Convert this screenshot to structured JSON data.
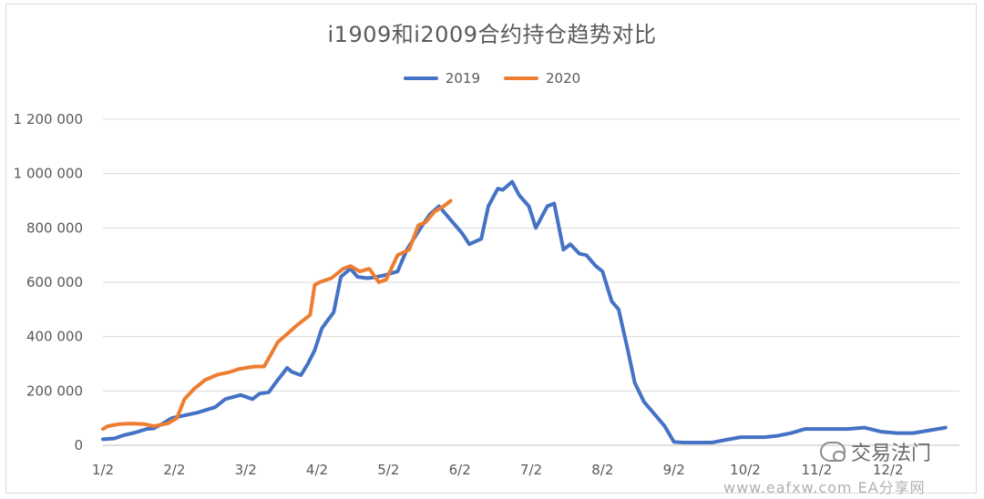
{
  "chart_data": {
    "type": "line",
    "title": "i1909和i2009合约持仓趋势对比",
    "xlabel": "",
    "ylabel": "",
    "x_ticks": [
      "1/2",
      "2/2",
      "3/2",
      "4/2",
      "5/2",
      "6/2",
      "7/2",
      "8/2",
      "9/2",
      "10/2",
      "11/2",
      "12/2"
    ],
    "y_ticks": [
      "0",
      "200 000",
      "400 000",
      "600 000",
      "800 000",
      "1 000 000",
      "1 200 000"
    ],
    "ylim": [
      0,
      1200000
    ],
    "grid": true,
    "legend_position": "top",
    "series": [
      {
        "name": "2019",
        "color": "#4472C4",
        "x": [
          "1/2",
          "1/7",
          "1/11",
          "1/16",
          "1/21",
          "1/24",
          "1/28",
          "2/1",
          "2/11",
          "2/18",
          "2/22",
          "2/28",
          "3/5",
          "3/8",
          "3/12",
          "3/15",
          "3/20",
          "3/22",
          "3/26",
          "3/29",
          "4/1",
          "4/4",
          "4/9",
          "4/12",
          "4/16",
          "4/19",
          "4/23",
          "4/26",
          "4/30",
          "5/6",
          "5/10",
          "5/16",
          "5/20",
          "5/24",
          "5/29",
          "6/3",
          "6/6",
          "6/11",
          "6/14",
          "6/18",
          "6/20",
          "6/24",
          "6/27",
          "7/1",
          "7/4",
          "7/9",
          "7/12",
          "7/16",
          "7/19",
          "7/23",
          "7/26",
          "7/30",
          "8/2",
          "8/6",
          "8/9",
          "8/13",
          "8/16",
          "8/20",
          "8/23",
          "8/29",
          "9/2",
          "9/6",
          "9/12",
          "9/18",
          "9/24",
          "9/30",
          "10/10",
          "10/16",
          "10/22",
          "10/28",
          "11/1",
          "11/8",
          "11/15",
          "11/22",
          "11/29",
          "12/6",
          "12/13",
          "12/20",
          "12/27"
        ],
        "values": [
          22000,
          25000,
          37000,
          47000,
          60000,
          62000,
          80000,
          100000,
          120000,
          140000,
          170000,
          185000,
          170000,
          190000,
          195000,
          230000,
          285000,
          270000,
          258000,
          300000,
          350000,
          430000,
          490000,
          620000,
          650000,
          620000,
          615000,
          618000,
          625000,
          640000,
          720000,
          800000,
          850000,
          880000,
          830000,
          780000,
          740000,
          760000,
          880000,
          945000,
          940000,
          970000,
          920000,
          880000,
          800000,
          880000,
          890000,
          720000,
          740000,
          705000,
          700000,
          660000,
          640000,
          530000,
          500000,
          350000,
          230000,
          160000,
          130000,
          70000,
          12000,
          10000,
          10000,
          10000,
          20000,
          30000,
          30000,
          35000,
          45000,
          60000,
          60000,
          60000,
          60000,
          65000,
          50000,
          45000,
          45000,
          55000,
          65000
        ]
      },
      {
        "name": "2020",
        "color": "#ED7D31",
        "x": [
          "1/2",
          "1/4",
          "1/9",
          "1/14",
          "1/20",
          "1/24",
          "1/30",
          "2/3",
          "2/6",
          "2/10",
          "2/14",
          "2/19",
          "2/24",
          "2/27",
          "3/2",
          "3/6",
          "3/10",
          "3/16",
          "3/20",
          "3/24",
          "3/30",
          "4/1",
          "4/3",
          "4/8",
          "4/13",
          "4/16",
          "4/20",
          "4/24",
          "4/28",
          "5/1",
          "5/6",
          "5/11",
          "5/15",
          "5/18",
          "5/22",
          "5/26",
          "5/29"
        ],
        "values": [
          60000,
          70000,
          78000,
          80000,
          78000,
          70000,
          80000,
          100000,
          170000,
          210000,
          240000,
          260000,
          270000,
          280000,
          285000,
          290000,
          290000,
          380000,
          410000,
          440000,
          480000,
          590000,
          600000,
          615000,
          650000,
          660000,
          640000,
          650000,
          600000,
          610000,
          700000,
          720000,
          810000,
          820000,
          860000,
          880000,
          900000
        ]
      }
    ]
  },
  "watermark": {
    "brand": "交易法门",
    "site": "www.eafxw.com  EA分享网"
  }
}
